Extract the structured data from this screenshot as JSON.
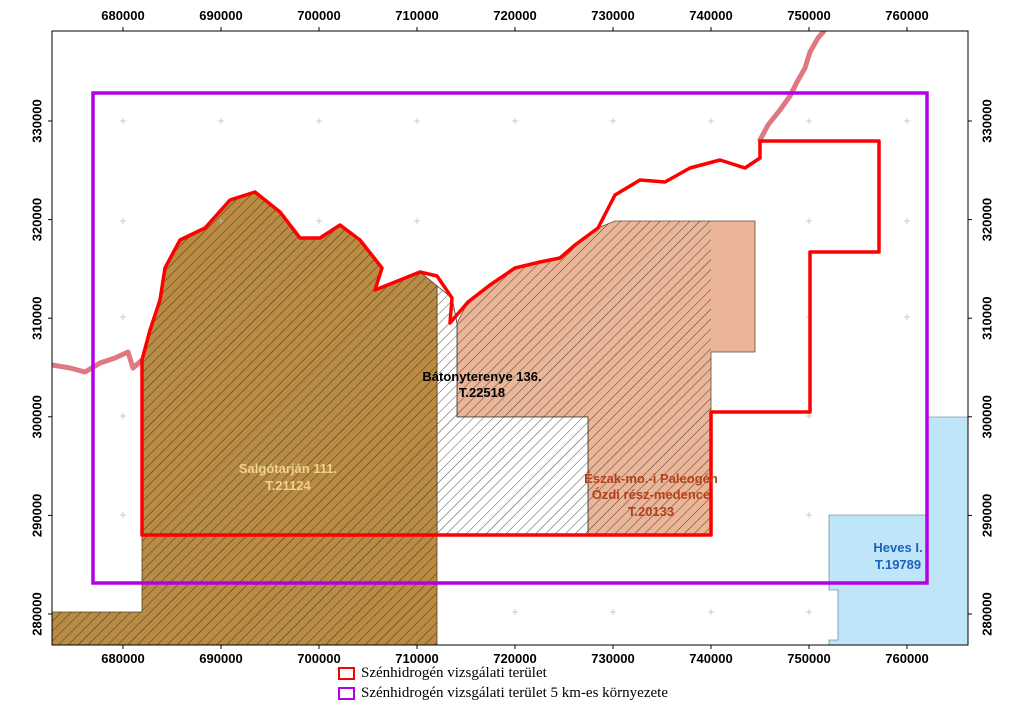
{
  "map": {
    "x_ticks": [
      "680000",
      "690000",
      "700000",
      "710000",
      "720000",
      "730000",
      "740000",
      "750000",
      "760000"
    ],
    "y_ticks": [
      "330000",
      "320000",
      "310000",
      "300000",
      "290000",
      "280000"
    ],
    "areas": [
      {
        "name": "Salgótarján 111.",
        "code": "T.21124",
        "color": "#f0d48a"
      },
      {
        "name": "Bátonyterenye 136.",
        "code": "T.22518",
        "color": "#000000"
      },
      {
        "name": "Észak-mo.-i Paleogén",
        "name2": "Ózdi rész-medence",
        "code": "T.20133",
        "color": "#b3401a"
      },
      {
        "name": "Heves I.",
        "code": "T.19789",
        "color": "#1f5fbf"
      }
    ],
    "colors": {
      "salgotarjan_fill": "#b98b43",
      "ozd_fill": "#ebb697",
      "heves_fill": "#bfe5f8",
      "study_area": "#ff0000",
      "buffer_5km": "#b400e6",
      "border": "#d9606a"
    }
  },
  "legend": [
    {
      "label": "Szénhidrogén vizsgálati terület",
      "color": "#ff0000"
    },
    {
      "label": "Szénhidrogén vizsgálati terület 5 km-es környezete",
      "color": "#b400e6"
    }
  ]
}
